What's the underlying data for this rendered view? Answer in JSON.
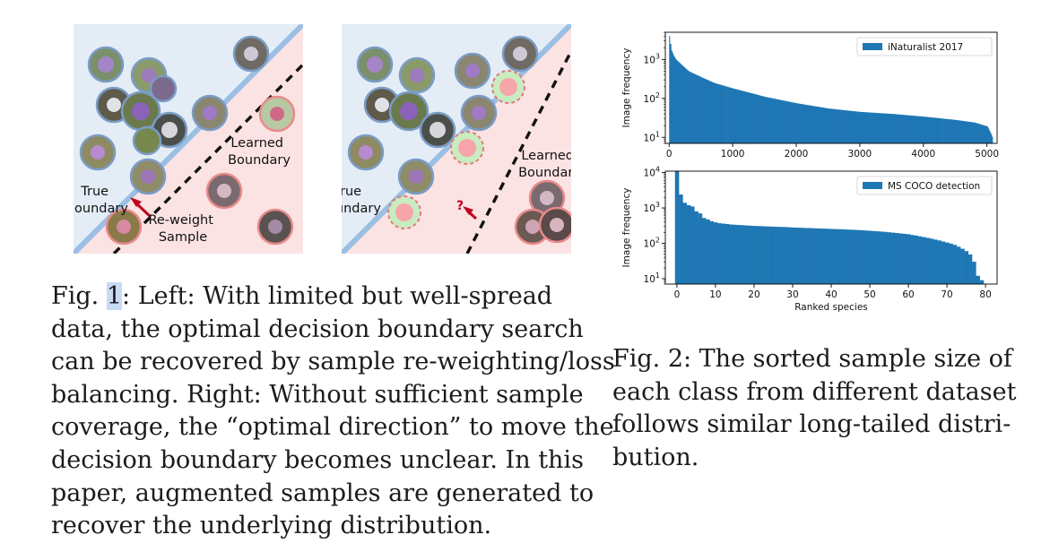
{
  "figure1": {
    "left_panel": {
      "learned_boundary_label": [
        "Learned",
        "Boundary"
      ],
      "true_boundary_label": [
        "True",
        "Boundary"
      ],
      "reweight_label": [
        "Re-weight",
        "Sample"
      ]
    },
    "right_panel": {
      "learned_boundary_label": [
        "Learned",
        "Boundary"
      ],
      "true_boundary_label": [
        "True",
        "Boundary"
      ],
      "question_mark": "?"
    },
    "colors": {
      "positive_region": "#e4edf6",
      "negative_region": "#fbe3e4",
      "true_boundary_line": "#9bbfe3",
      "arrow": "#c0001a",
      "pos_ring": "#7a9cc6",
      "neg_ring": "#e88a8a",
      "aug_green": "#c8ecc0",
      "aug_pink": "#f6a5a8"
    }
  },
  "caption1": {
    "fig_label": "Fig.",
    "fig_number": "1",
    "lines": [
      ": Left: With limited but well-spread",
      "data, the optimal decision boundary search",
      "can be recovered by sample re-weighting/loss",
      "balancing. Right: Without sufficient sample",
      "coverage, the “optimal direction” to move the",
      "decision boundary becomes unclear. In this",
      "paper, augmented samples are generated to",
      "recover the underlying distribution."
    ]
  },
  "caption2": {
    "lines": [
      "Fig. 2: The sorted sample size of",
      "each class from different dataset",
      "follows similar long-tailed distri-",
      "bution."
    ]
  },
  "chart_data": [
    {
      "type": "bar",
      "title": "",
      "xlabel": "",
      "ylabel": "Image frequency",
      "yscale": "log",
      "ylim": [
        7,
        5000
      ],
      "xlim": [
        -60,
        5160
      ],
      "x_ticks": [
        0,
        1000,
        2000,
        3000,
        4000,
        5000
      ],
      "y_ticks": [
        "10^1",
        "10^2",
        "10^3"
      ],
      "legend": {
        "label": "iNaturalist 2017",
        "position": "top-right"
      },
      "color": "#1f77b4",
      "x": [
        0,
        10,
        30,
        60,
        100,
        200,
        300,
        500,
        700,
        1000,
        1500,
        2000,
        2500,
        3000,
        3500,
        4000,
        4500,
        4800,
        5000,
        5060,
        5089
      ],
      "values": [
        4000,
        2500,
        1700,
        1300,
        1000,
        700,
        500,
        350,
        250,
        180,
        110,
        75,
        55,
        45,
        40,
        34,
        28,
        24,
        19,
        12,
        9
      ]
    },
    {
      "type": "bar",
      "title": "",
      "xlabel": "Ranked species",
      "ylabel": "Image frequency",
      "yscale": "log",
      "ylim": [
        7,
        11000
      ],
      "xlim": [
        -3,
        83
      ],
      "x_ticks": [
        0,
        10,
        20,
        30,
        40,
        50,
        60,
        70,
        80
      ],
      "y_ticks": [
        "10^1",
        "10^2",
        "10^3",
        "10^4"
      ],
      "legend": {
        "label": "MS COCO detection",
        "position": "top-right"
      },
      "color": "#1f77b4",
      "categories": [
        0,
        1,
        2,
        3,
        4,
        5,
        6,
        7,
        8,
        9,
        10,
        11,
        12,
        13,
        14,
        15,
        16,
        17,
        18,
        19,
        20,
        21,
        22,
        23,
        24,
        25,
        26,
        27,
        28,
        29,
        30,
        31,
        32,
        33,
        34,
        35,
        36,
        37,
        38,
        39,
        40,
        41,
        42,
        43,
        44,
        45,
        46,
        47,
        48,
        49,
        50,
        51,
        52,
        53,
        54,
        55,
        56,
        57,
        58,
        59,
        60,
        61,
        62,
        63,
        64,
        65,
        66,
        67,
        68,
        69,
        70,
        71,
        72,
        73,
        74,
        75,
        76,
        77,
        78,
        79
      ],
      "values": [
        11000,
        2400,
        1400,
        1200,
        1100,
        800,
        700,
        520,
        470,
        420,
        390,
        370,
        360,
        350,
        340,
        335,
        330,
        325,
        320,
        315,
        310,
        308,
        305,
        300,
        298,
        295,
        292,
        290,
        288,
        285,
        280,
        278,
        275,
        272,
        270,
        268,
        265,
        262,
        260,
        258,
        255,
        252,
        250,
        248,
        245,
        242,
        240,
        237,
        234,
        230,
        226,
        222,
        218,
        214,
        210,
        205,
        200,
        195,
        190,
        185,
        180,
        172,
        165,
        157,
        150,
        142,
        135,
        127,
        120,
        112,
        105,
        98,
        90,
        80,
        70,
        60,
        48,
        30,
        12,
        9
      ]
    }
  ]
}
